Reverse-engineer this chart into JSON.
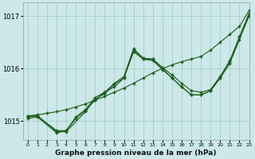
{
  "bg_color": "#cce8e8",
  "grid_color": "#aacccc",
  "line_color": "#1a5c1a",
  "title": "Graphe pression niveau de la mer (hPa)",
  "xlim": [
    -0.5,
    23
  ],
  "ylim": [
    1014.65,
    1017.25
  ],
  "yticks": [
    1015,
    1016,
    1017
  ],
  "xticks": [
    0,
    1,
    2,
    3,
    4,
    5,
    6,
    7,
    8,
    9,
    10,
    11,
    12,
    13,
    14,
    15,
    16,
    17,
    18,
    19,
    20,
    21,
    22,
    23
  ],
  "series1": {
    "x": [
      0,
      1,
      2,
      3,
      4,
      5,
      6,
      7,
      8,
      9,
      10,
      11,
      12,
      13,
      14,
      15,
      16,
      17,
      18,
      19,
      20,
      21,
      22,
      23
    ],
    "y": [
      1015.1,
      1015.12,
      1015.15,
      1015.18,
      1015.22,
      1015.27,
      1015.33,
      1015.4,
      1015.47,
      1015.55,
      1015.63,
      1015.72,
      1015.82,
      1015.92,
      1016.0,
      1016.07,
      1016.13,
      1016.18,
      1016.23,
      1016.35,
      1016.5,
      1016.65,
      1016.8,
      1017.1
    ]
  },
  "series2": {
    "x": [
      0,
      1,
      3,
      4,
      5,
      6,
      7,
      8,
      9,
      10,
      11,
      12,
      13,
      14,
      15,
      16,
      17,
      18,
      19,
      20,
      21,
      22,
      23
    ],
    "y": [
      1015.1,
      1015.1,
      1014.82,
      1014.82,
      1015.05,
      1015.2,
      1015.4,
      1015.55,
      1015.65,
      1015.82,
      1016.32,
      1016.18,
      1016.18,
      1016.02,
      1015.88,
      1015.72,
      1015.58,
      1015.55,
      1015.6,
      1015.85,
      1016.15,
      1016.6,
      1017.05
    ]
  },
  "series3": {
    "x": [
      0,
      1,
      3,
      4,
      6,
      7,
      8,
      9,
      10,
      11,
      12,
      13,
      14,
      15,
      16,
      17,
      18,
      19,
      20,
      21,
      22,
      23
    ],
    "y": [
      1015.08,
      1015.1,
      1014.8,
      1014.8,
      1015.18,
      1015.42,
      1015.52,
      1015.7,
      1015.82,
      1016.35,
      1016.18,
      1016.15,
      1015.98,
      1015.82,
      1015.65,
      1015.5,
      1015.5,
      1015.58,
      1015.82,
      1016.1,
      1016.55,
      1017.0
    ]
  },
  "series4": {
    "x": [
      0,
      1,
      3,
      4,
      5,
      6,
      7,
      8,
      9,
      10,
      11,
      12,
      13,
      14,
      15,
      16,
      17,
      18,
      19,
      20,
      21,
      22,
      23
    ],
    "y": [
      1015.05,
      1015.08,
      1014.78,
      1014.82,
      1015.08,
      1015.22,
      1015.45,
      1015.55,
      1015.72,
      1015.85,
      1016.38,
      1016.2,
      1016.18,
      1016.0,
      1015.82,
      1015.65,
      1015.5,
      1015.5,
      1015.58,
      1015.82,
      1016.12,
      1016.6,
      1017.0
    ]
  }
}
